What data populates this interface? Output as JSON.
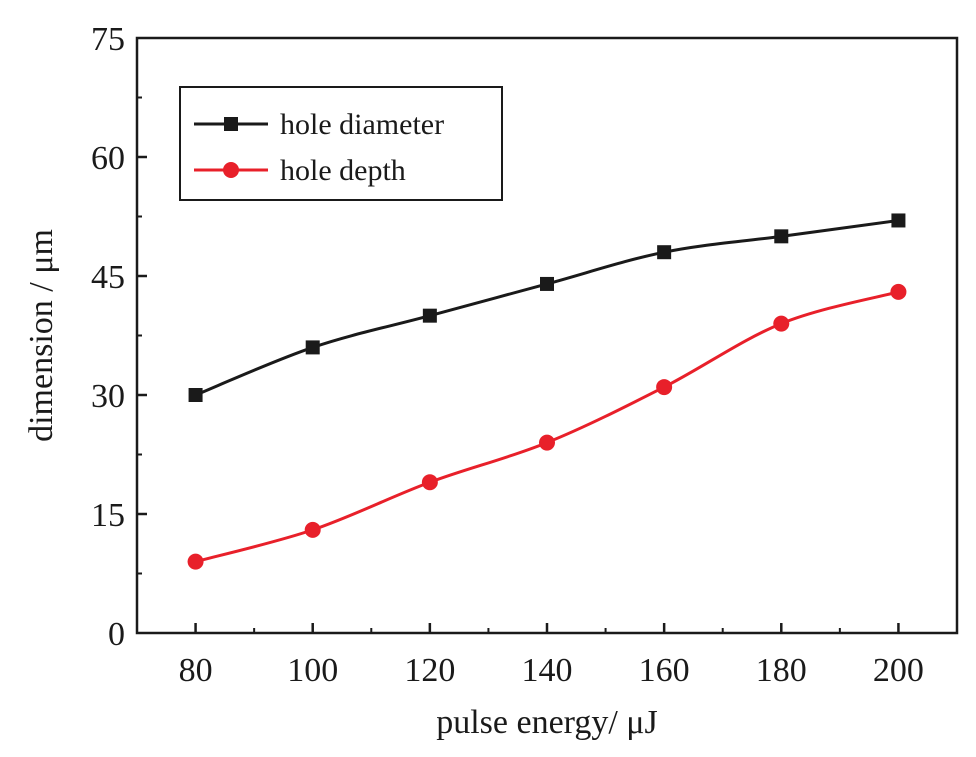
{
  "chart_data": {
    "type": "line",
    "xlabel": "pulse energy/  μJ",
    "ylabel": "dimension / μm",
    "x": [
      80,
      100,
      120,
      140,
      160,
      180,
      200
    ],
    "xticks": [
      "80",
      "100",
      "120",
      "140",
      "160",
      "180",
      "200"
    ],
    "yticks": [
      "0",
      "15",
      "30",
      "45",
      "60",
      "75"
    ],
    "xlim": [
      70,
      210
    ],
    "ylim": [
      0,
      75
    ],
    "grid": false,
    "legend_position": "top-left",
    "series": [
      {
        "name": "hole diameter",
        "color": "#1a1a1a",
        "marker": "square",
        "values": [
          30,
          36,
          40,
          44,
          48,
          50,
          52
        ]
      },
      {
        "name": "hole depth",
        "color": "#e8202a",
        "marker": "circle",
        "values": [
          9,
          13,
          19,
          24,
          31,
          39,
          43
        ]
      }
    ]
  }
}
